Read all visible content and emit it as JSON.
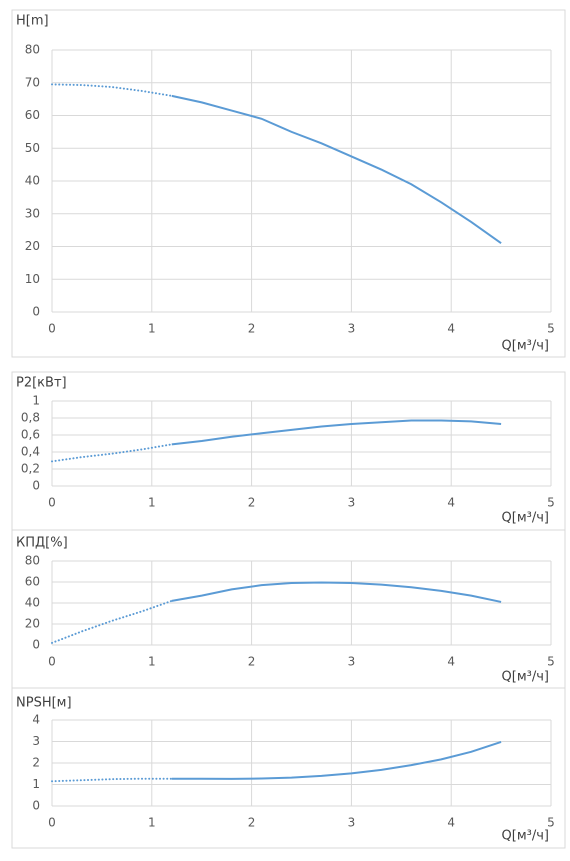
{
  "chart_data": [
    {
      "type": "line",
      "y_label": "H[m]",
      "x_label": "Q[м³/ч]",
      "x": [
        0,
        0.3,
        0.6,
        0.9,
        1.2,
        1.5,
        1.8,
        2.1,
        2.4,
        2.7,
        3.0,
        3.3,
        3.6,
        3.9,
        4.2,
        4.5
      ],
      "xlim": [
        0,
        5
      ],
      "xticks": [
        0,
        1,
        2,
        3,
        4,
        5
      ],
      "ylim": [
        0,
        80
      ],
      "yticks": [
        0,
        10,
        20,
        30,
        40,
        50,
        60,
        70,
        80
      ],
      "grid": true,
      "series": [
        {
          "color": "#5b9bd5",
          "style": "dotted",
          "values": [
            69.5,
            69.3,
            68.7,
            67.5,
            66,
            null,
            null,
            null,
            null,
            null,
            null,
            null,
            null,
            null,
            null,
            null
          ]
        },
        {
          "color": "#5b9bd5",
          "style": "solid",
          "values": [
            null,
            null,
            null,
            null,
            66,
            64,
            61.5,
            59,
            55,
            51.5,
            47.5,
            43.5,
            39,
            33.5,
            27.5,
            21
          ]
        }
      ]
    },
    {
      "type": "line",
      "y_label": "P2[кВт]",
      "x_label": "Q[м³/ч]",
      "x": [
        0,
        0.3,
        0.6,
        0.9,
        1.2,
        1.5,
        1.8,
        2.1,
        2.4,
        2.7,
        3.0,
        3.3,
        3.6,
        3.9,
        4.2,
        4.5
      ],
      "xlim": [
        0,
        5
      ],
      "xticks": [
        0,
        1,
        2,
        3,
        4,
        5
      ],
      "ylim": [
        0,
        1
      ],
      "yticks": [
        0,
        {
          "value": 0.2,
          "label": "0,2"
        },
        {
          "value": 0.4,
          "label": "0,4"
        },
        {
          "value": 0.6,
          "label": "0,6"
        },
        {
          "value": 0.8,
          "label": "0,8"
        },
        1
      ],
      "grid": true,
      "series": [
        {
          "color": "#5b9bd5",
          "style": "dotted",
          "values": [
            0.29,
            0.34,
            0.38,
            0.43,
            0.49,
            null,
            null,
            null,
            null,
            null,
            null,
            null,
            null,
            null,
            null,
            null
          ]
        },
        {
          "color": "#5b9bd5",
          "style": "solid",
          "values": [
            null,
            null,
            null,
            null,
            0.49,
            0.53,
            0.58,
            0.62,
            0.66,
            0.7,
            0.73,
            0.75,
            0.77,
            0.77,
            0.76,
            0.73
          ]
        }
      ]
    },
    {
      "type": "line",
      "y_label": "КПД[%]",
      "x_label": "Q[м³/ч]",
      "x": [
        0,
        0.3,
        0.6,
        0.9,
        1.2,
        1.5,
        1.8,
        2.1,
        2.4,
        2.7,
        3.0,
        3.3,
        3.6,
        3.9,
        4.2,
        4.5
      ],
      "xlim": [
        0,
        5
      ],
      "xticks": [
        0,
        1,
        2,
        3,
        4,
        5
      ],
      "ylim": [
        0,
        80
      ],
      "yticks": [
        0,
        20,
        40,
        60,
        80
      ],
      "grid": true,
      "series": [
        {
          "color": "#5b9bd5",
          "style": "dotted",
          "values": [
            2,
            13,
            23,
            32,
            42,
            null,
            null,
            null,
            null,
            null,
            null,
            null,
            null,
            null,
            null,
            null
          ]
        },
        {
          "color": "#5b9bd5",
          "style": "solid",
          "values": [
            null,
            null,
            null,
            null,
            42,
            47,
            53,
            57,
            59,
            59.5,
            59,
            57.5,
            55,
            51.5,
            47,
            41
          ]
        }
      ]
    },
    {
      "type": "line",
      "y_label": "NPSH[м]",
      "x_label": "Q[м³/ч]",
      "x": [
        0,
        0.3,
        0.6,
        0.9,
        1.2,
        1.5,
        1.8,
        2.1,
        2.4,
        2.7,
        3.0,
        3.3,
        3.6,
        3.9,
        4.2,
        4.5
      ],
      "xlim": [
        0,
        5
      ],
      "xticks": [
        0,
        1,
        2,
        3,
        4,
        5
      ],
      "ylim": [
        0,
        4
      ],
      "yticks": [
        0,
        1,
        2,
        3,
        4
      ],
      "grid": true,
      "series": [
        {
          "color": "#5b9bd5",
          "style": "dotted",
          "values": [
            1.15,
            1.2,
            1.25,
            1.27,
            1.27,
            null,
            null,
            null,
            null,
            null,
            null,
            null,
            null,
            null,
            null,
            null
          ]
        },
        {
          "color": "#5b9bd5",
          "style": "solid",
          "values": [
            null,
            null,
            null,
            null,
            1.27,
            1.27,
            1.26,
            1.28,
            1.32,
            1.4,
            1.52,
            1.68,
            1.9,
            2.17,
            2.52,
            2.98
          ]
        }
      ]
    }
  ]
}
